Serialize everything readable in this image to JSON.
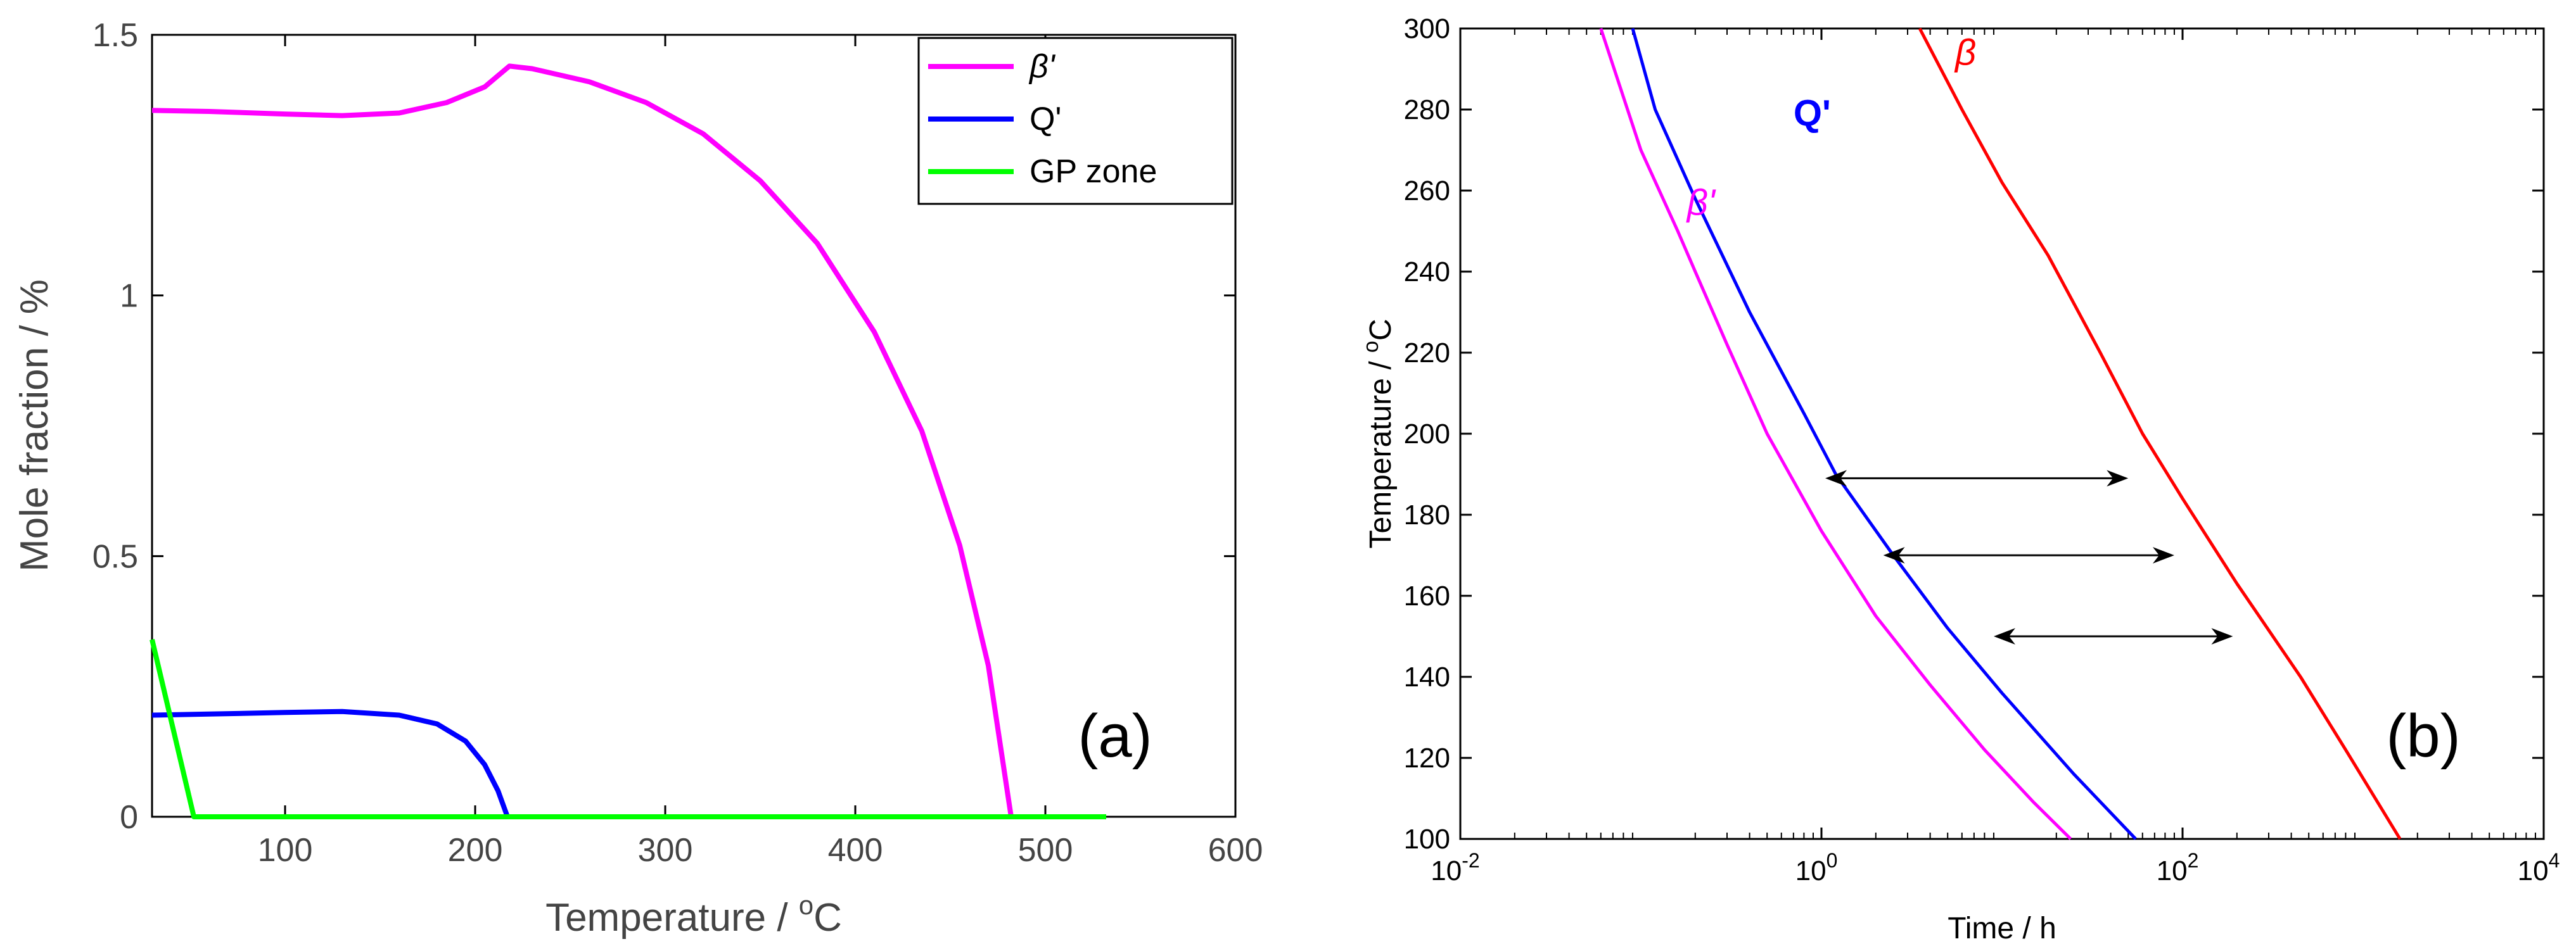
{
  "chart_data": [
    {
      "type": "line",
      "panel_label": "(a)",
      "xlabel_prefix": "Temperature / ",
      "xlabel_sup": "o",
      "xlabel_suffix": "C",
      "ylabel": "Mole fraction / %",
      "xlim": [
        30,
        600
      ],
      "ylim": [
        0,
        1.5
      ],
      "x_ticks": [
        100,
        200,
        300,
        400,
        500,
        600
      ],
      "x_tick_labels": [
        "100",
        "200",
        "300",
        "400",
        "500",
        "600"
      ],
      "y_ticks": [
        0,
        0.5,
        1,
        1.5
      ],
      "y_tick_labels": [
        "0",
        "0.5",
        "1",
        "1.5"
      ],
      "legend_position": "top-right",
      "series": [
        {
          "name": "β'",
          "color": "#ff00ff",
          "points": [
            [
              30,
              1.355
            ],
            [
              60,
              1.353
            ],
            [
              100,
              1.348
            ],
            [
              130,
              1.345
            ],
            [
              160,
              1.35
            ],
            [
              185,
              1.37
            ],
            [
              205,
              1.4
            ],
            [
              218,
              1.44
            ],
            [
              230,
              1.435
            ],
            [
              260,
              1.41
            ],
            [
              290,
              1.37
            ],
            [
              320,
              1.31
            ],
            [
              350,
              1.22
            ],
            [
              380,
              1.1
            ],
            [
              410,
              0.93
            ],
            [
              435,
              0.74
            ],
            [
              455,
              0.52
            ],
            [
              470,
              0.29
            ],
            [
              482,
              0.0
            ]
          ]
        },
        {
          "name": "Q'",
          "color": "#0000ff",
          "points": [
            [
              30,
              0.195
            ],
            [
              60,
              0.197
            ],
            [
              100,
              0.2
            ],
            [
              130,
              0.202
            ],
            [
              160,
              0.195
            ],
            [
              180,
              0.178
            ],
            [
              195,
              0.145
            ],
            [
              205,
              0.1
            ],
            [
              212,
              0.05
            ],
            [
              217,
              0.0
            ]
          ]
        },
        {
          "name": "GP zone",
          "color": "#00ff00",
          "points": [
            [
              30,
              0.34
            ],
            [
              52,
              0.0
            ],
            [
              532,
              0.0
            ]
          ]
        }
      ]
    },
    {
      "type": "line",
      "panel_label": "(b)",
      "xlabel": "Time / h",
      "ylabel_prefix": "Temperature / ",
      "ylabel_sup": "o",
      "ylabel_suffix": "C",
      "x_scale": "log",
      "xlim": [
        0.01,
        10000
      ],
      "ylim": [
        100,
        300
      ],
      "x_ticks": [
        0.01,
        1,
        100,
        10000
      ],
      "x_tick_bases": [
        "10",
        "10",
        "10",
        "10"
      ],
      "x_tick_exps": [
        "-2",
        "0",
        "2",
        "4"
      ],
      "y_ticks": [
        100,
        120,
        140,
        160,
        180,
        200,
        220,
        240,
        260,
        280,
        300
      ],
      "y_tick_labels": [
        "100",
        "120",
        "140",
        "160",
        "180",
        "200",
        "220",
        "240",
        "260",
        "280",
        "300"
      ],
      "series": [
        {
          "name": "β'",
          "color": "#ff00ff",
          "label_position": [
            0.18,
            254
          ],
          "points": [
            [
              0.06,
              300
            ],
            [
              0.1,
              270
            ],
            [
              0.16,
              250
            ],
            [
              0.2,
              240
            ],
            [
              0.3,
              222
            ],
            [
              0.5,
              200
            ],
            [
              1.0,
              176
            ],
            [
              2.0,
              155
            ],
            [
              4.0,
              138
            ],
            [
              8.0,
              122
            ],
            [
              15.0,
              109
            ],
            [
              24.0,
              100
            ]
          ]
        },
        {
          "name": "Q'",
          "color": "#0000ff",
          "label_position": [
            0.7,
            276
          ],
          "points": [
            [
              0.09,
              300
            ],
            [
              0.12,
              280
            ],
            [
              0.2,
              258
            ],
            [
              0.4,
              230
            ],
            [
              0.8,
              205
            ],
            [
              1.2,
              190
            ],
            [
              2.5,
              170
            ],
            [
              5.0,
              152
            ],
            [
              10.0,
              136
            ],
            [
              25.0,
              116
            ],
            [
              55.0,
              100
            ]
          ]
        },
        {
          "name": "β",
          "color": "#ff0000",
          "label_position": [
            5.5,
            291
          ],
          "points": [
            [
              3.5,
              300
            ],
            [
              6.0,
              280
            ],
            [
              10.0,
              262
            ],
            [
              18.0,
              244
            ],
            [
              35.0,
              220
            ],
            [
              60.0,
              200
            ],
            [
              100.0,
              184
            ],
            [
              200.0,
              163
            ],
            [
              450.0,
              140
            ],
            [
              800.0,
              122
            ],
            [
              1600.0,
              100
            ]
          ]
        }
      ],
      "arrows": [
        {
          "x1": 1.05,
          "x2": 50,
          "y": 189
        },
        {
          "x1": 2.2,
          "x2": 90,
          "y": 170
        },
        {
          "x1": 9.0,
          "x2": 190,
          "y": 150
        }
      ]
    }
  ]
}
